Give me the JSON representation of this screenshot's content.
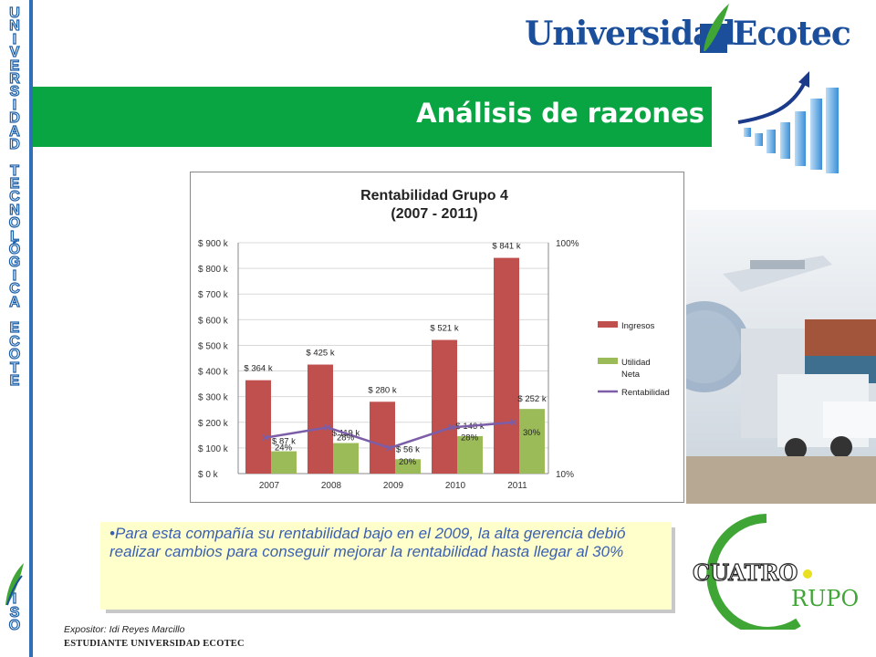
{
  "sidebar": {
    "vertical_text": "UNIVERSIDAD TECNOLÓGICA ECOTE",
    "bottom_text": "ISO"
  },
  "header": {
    "logo_part1": "Universidad",
    "logo_part2": "Ecotec",
    "title": "Análisis de razones"
  },
  "chart_data": {
    "type": "bar",
    "title": "Rentabilidad Grupo 4",
    "subtitle": "(2007 - 2011)",
    "categories": [
      "2007",
      "2008",
      "2009",
      "2010",
      "2011"
    ],
    "y_ticks": [
      "$ 0 k",
      "$ 100 k",
      "$ 200 k",
      "$ 300 k",
      "$ 400 k",
      "$ 500 k",
      "$ 600 k",
      "$ 700 k",
      "$ 800 k",
      "$ 900 k"
    ],
    "ylim": [
      0,
      900
    ],
    "y2_ticks": [
      "10%",
      "100%"
    ],
    "y2lim": [
      10,
      100
    ],
    "series": [
      {
        "name": "Ingresos",
        "type": "bar",
        "color": "#c0504d",
        "values": [
          364,
          425,
          280,
          521,
          841
        ],
        "labels": [
          "$ 364  k",
          "$ 425  k",
          "$ 280  k",
          "$ 521  k",
          "$ 841  k"
        ]
      },
      {
        "name": "Utilidad Neta",
        "type": "bar",
        "color": "#9bbb59",
        "values": [
          87,
          119,
          56,
          146,
          252
        ],
        "labels": [
          "$ 87  k",
          "$ 119  k",
          "$ 56  k",
          "$ 146  k",
          "$ 252  k"
        ]
      },
      {
        "name": "Rentabilidad",
        "type": "line",
        "axis": "secondary",
        "color": "#7b5ea7",
        "values": [
          24,
          28,
          20,
          28,
          30
        ],
        "labels": [
          "24%",
          "28%",
          "20%",
          "28%",
          "30%"
        ]
      }
    ],
    "legend": [
      "Ingresos",
      "Utilidad",
      "Neta",
      "Rentabilidad"
    ],
    "legend_position": "right"
  },
  "note": {
    "text": "•Para esta compañía su rentabilidad bajo en el 2009, la alta gerencia debió realizar cambios para conseguir mejorar la rentabilidad hasta llegar al 30%"
  },
  "brand": {
    "cuatro": "CUATRO",
    "grupo": "RUPO"
  },
  "footer": {
    "expositor": "Expositor:  Idi Reyes Marcillo",
    "student": "ESTUDIANTE UNIVERSIDAD ECOTEC"
  },
  "colors": {
    "title_bar": "#0aa543",
    "brand_blue": "#1b4f9c",
    "brand_green": "#3fa535",
    "note_bg": "#ffffcc",
    "note_text": "#3a5fb0"
  }
}
